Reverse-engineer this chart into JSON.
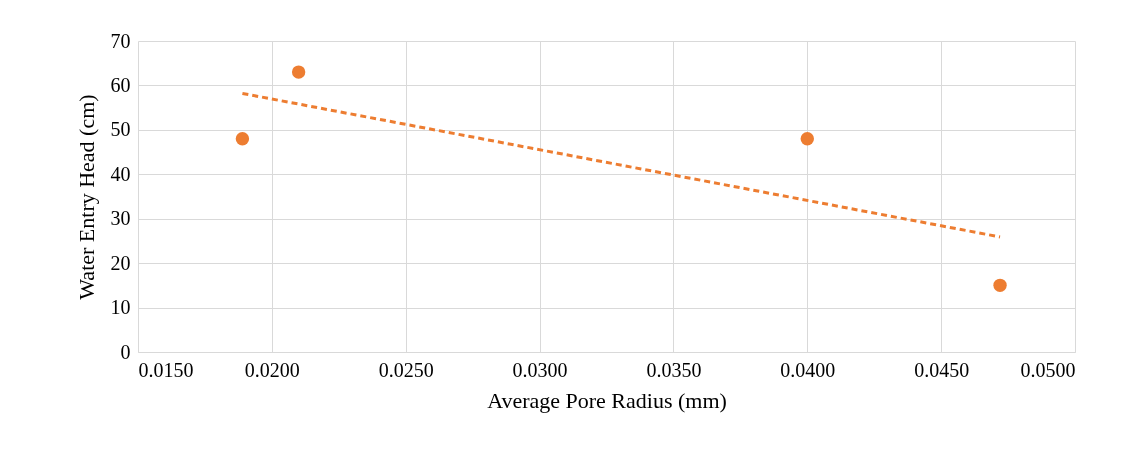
{
  "chart_data": {
    "type": "scatter",
    "xlabel": "Average Pore Radius (mm)",
    "ylabel": "Water Entry Head (cm)",
    "series": [
      {
        "color": "#ed7d31",
        "marker": "circle",
        "x": [
          0.0189,
          0.021,
          0.04,
          0.0472
        ],
        "values": [
          48,
          63,
          48,
          15
        ]
      },
      {
        "type": "line",
        "color": "#ed7d31",
        "line_style": "dashed",
        "x": [
          0.0189,
          0.0472
        ],
        "values": [
          58.2,
          25.9
        ]
      }
    ],
    "grid": true,
    "xlim": [
      0.015,
      0.05
    ],
    "xticks": [
      {
        "value": 0.015,
        "label": "0.0150"
      },
      {
        "value": 0.02,
        "label": "0.0200"
      },
      {
        "value": 0.025,
        "label": "0.0250"
      },
      {
        "value": 0.03,
        "label": "0.0300"
      },
      {
        "value": 0.035,
        "label": "0.0350"
      },
      {
        "value": 0.04,
        "label": "0.0400"
      },
      {
        "value": 0.045,
        "label": "0.0450"
      },
      {
        "value": 0.05,
        "label": "0.0500"
      }
    ],
    "ylim": [
      0,
      70
    ],
    "yticks": [
      0,
      10,
      20,
      30,
      40,
      50,
      60,
      70
    ]
  }
}
